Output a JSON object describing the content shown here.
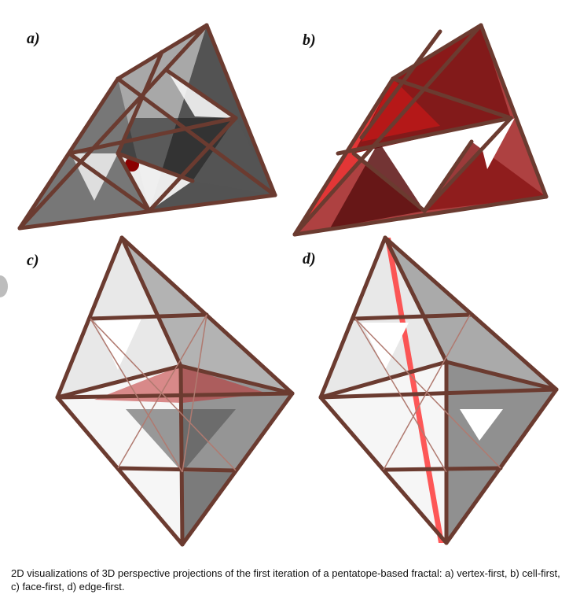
{
  "panels": [
    {
      "label": "a)",
      "view": "vertex-first"
    },
    {
      "label": "b)",
      "view": "cell-first"
    },
    {
      "label": "c)",
      "view": "face-first"
    },
    {
      "label": "d)",
      "view": "edge-first"
    }
  ],
  "caption": "2D visualizations of 3D perspective projections of the first iteration of a pentatope-based fractal: a) vertex-first, b) cell-first, c) face-first, d) edge-first.",
  "colors": {
    "rod": "#6b3b30",
    "rod_dark": "#3e2019",
    "dark_face": "#2a2a2a",
    "red_face": "#b01010",
    "bright_red": "#ff2020",
    "light_face": "#cfcfcf"
  }
}
